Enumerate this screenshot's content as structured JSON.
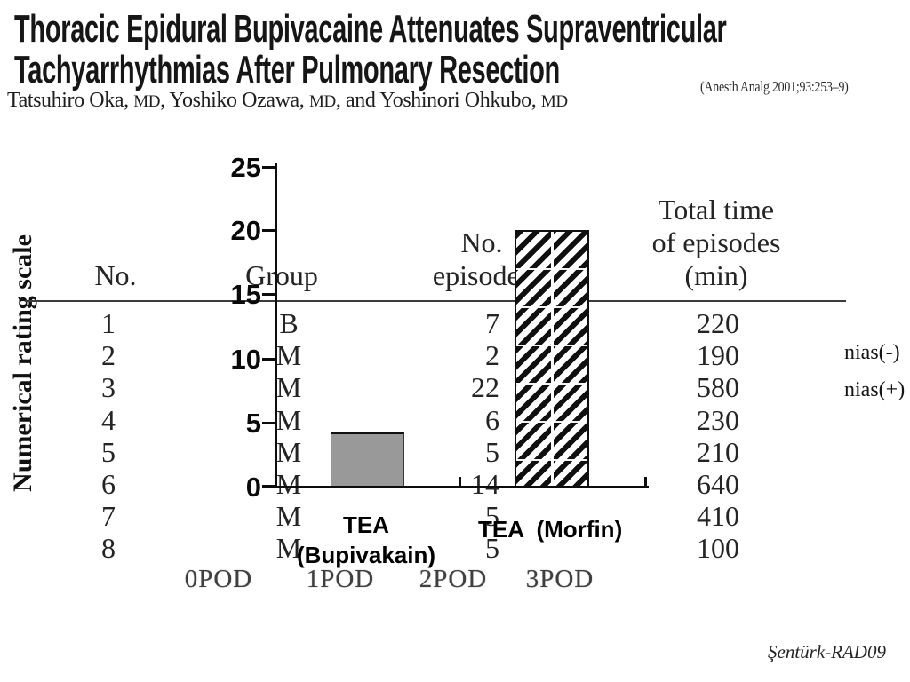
{
  "paper": {
    "title_lines": [
      "Thoracic Epidural Bupivacaine Attenuates Supraventricular",
      "Tachyarrhythmias After Pulmonary Resection"
    ],
    "citation": "(Anesth Analg 2001;93:253–9)",
    "authors": {
      "parts": [
        "Tatsuhiro Oka, ",
        "MD",
        ", Yoshiko Ozawa, ",
        "MD",
        ", and Yoshinori Ohkubo, ",
        "MD"
      ]
    }
  },
  "table": {
    "headers": {
      "no": "No.",
      "group": "Group",
      "episodes_line1": "No.",
      "episodes_line2": "episodes",
      "total_line1": "Total time",
      "total_line2": "of episodes",
      "total_line3": "(min)"
    },
    "rows": [
      {
        "no": "1",
        "group": "B",
        "episodes": "7",
        "total": "220"
      },
      {
        "no": "2",
        "group": "M",
        "episodes": "2",
        "total": "190"
      },
      {
        "no": "3",
        "group": "M",
        "episodes": "22",
        "total": "580"
      },
      {
        "no": "4",
        "group": "M",
        "episodes": "6",
        "total": "230"
      },
      {
        "no": "5",
        "group": "M",
        "episodes": "5",
        "total": "210"
      },
      {
        "no": "6",
        "group": "M",
        "episodes": "14",
        "total": "640"
      },
      {
        "no": "7",
        "group": "M",
        "episodes": "5",
        "total": "410"
      },
      {
        "no": "8",
        "group": "M",
        "episodes": "5",
        "total": "100"
      }
    ]
  },
  "chart_data": {
    "type": "bar",
    "title": "",
    "categories": [
      "TEA (Bupivakain)",
      "TEA (Morfin)"
    ],
    "values": [
      4.3,
      20
    ],
    "xlabel": "",
    "ylabel": "Numerical rating scale",
    "ylim": [
      0,
      25
    ],
    "y_ticks": [
      25,
      20,
      15,
      10,
      5,
      0
    ],
    "grid": false,
    "legend": "none",
    "bar_styles": [
      "solid-gray",
      "black-diagonal-hatch"
    ],
    "colors": {
      "bar1_fill": "#999999",
      "bar2_hatch": "#111111",
      "axis": "#0d0d0d"
    }
  },
  "chart": {
    "y_tick_labels": [
      "25",
      "20",
      "15",
      "10",
      "5",
      "0"
    ],
    "rotated_axis_label": "Numerical rating scale",
    "bar1_label_line1": "TEA",
    "bar1_label_line2": "(Bupivakain)",
    "bar2_label": "TEA  (Morfin)"
  },
  "background_text": {
    "pod_labels": [
      "0POD",
      "1POD",
      "2POD",
      "3POD"
    ],
    "right_edge_partial": [
      "nias(-)",
      "nias(+)"
    ]
  },
  "watermark": "Şentürk-RAD09"
}
